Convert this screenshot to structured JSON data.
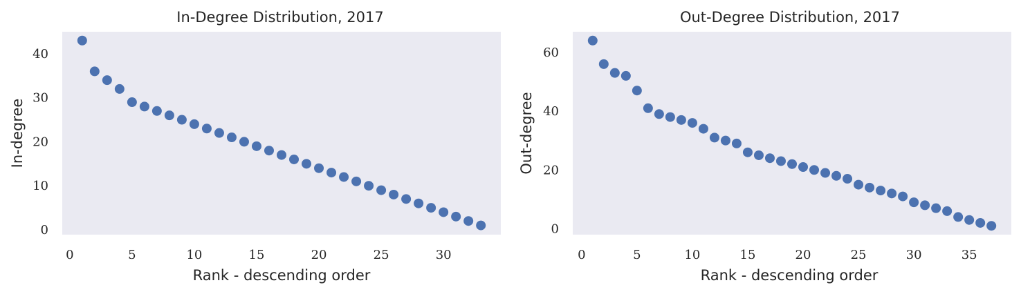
{
  "colors": {
    "plot_background": "#eaeaf2",
    "marker": "#4c72b0",
    "text": "#262626"
  },
  "chart_data": [
    {
      "type": "scatter",
      "title": "In-Degree Distribution, 2017",
      "xlabel": "Rank - descending order",
      "ylabel": "In-degree",
      "xlim": [
        -0.6,
        34.6
      ],
      "ylim": [
        -1.1,
        45
      ],
      "xticks": [
        0,
        5,
        10,
        15,
        20,
        25,
        30
      ],
      "yticks": [
        0,
        10,
        20,
        30,
        40
      ],
      "grid": false,
      "series": [
        {
          "x": [
            1,
            2,
            3,
            4,
            5,
            6,
            7,
            8,
            9,
            10,
            11,
            12,
            13,
            14,
            15,
            16,
            17,
            18,
            19,
            20,
            21,
            22,
            23,
            24,
            25,
            26,
            27,
            28,
            29,
            30,
            31,
            32,
            33
          ],
          "y": [
            43,
            36,
            34,
            32,
            29,
            28,
            27,
            26,
            25,
            24,
            23,
            22,
            21,
            20,
            19,
            18,
            17,
            16,
            15,
            14,
            13,
            12,
            11,
            10,
            9,
            8,
            7,
            6,
            5,
            4,
            3,
            2,
            1
          ]
        }
      ]
    },
    {
      "type": "scatter",
      "title": "Out-Degree Distribution, 2017",
      "xlabel": "Rank - descending order",
      "ylabel": "Out-degree",
      "xlim": [
        -0.8,
        38.8
      ],
      "ylim": [
        -2,
        67
      ],
      "xticks": [
        0,
        5,
        10,
        15,
        20,
        25,
        30,
        35
      ],
      "yticks": [
        0,
        20,
        40,
        60
      ],
      "grid": false,
      "series": [
        {
          "x": [
            1,
            2,
            3,
            4,
            5,
            6,
            7,
            8,
            9,
            10,
            11,
            12,
            13,
            14,
            15,
            16,
            17,
            18,
            19,
            20,
            21,
            22,
            23,
            24,
            25,
            26,
            27,
            28,
            29,
            30,
            31,
            32,
            33,
            34,
            35,
            36,
            37
          ],
          "y": [
            64,
            56,
            53,
            52,
            47,
            41,
            39,
            38,
            37,
            36,
            34,
            31,
            30,
            29,
            26,
            25,
            24,
            23,
            22,
            21,
            20,
            19,
            18,
            17,
            15,
            14,
            13,
            12,
            11,
            9,
            8,
            7,
            6,
            4,
            3,
            2,
            1
          ]
        }
      ]
    }
  ]
}
